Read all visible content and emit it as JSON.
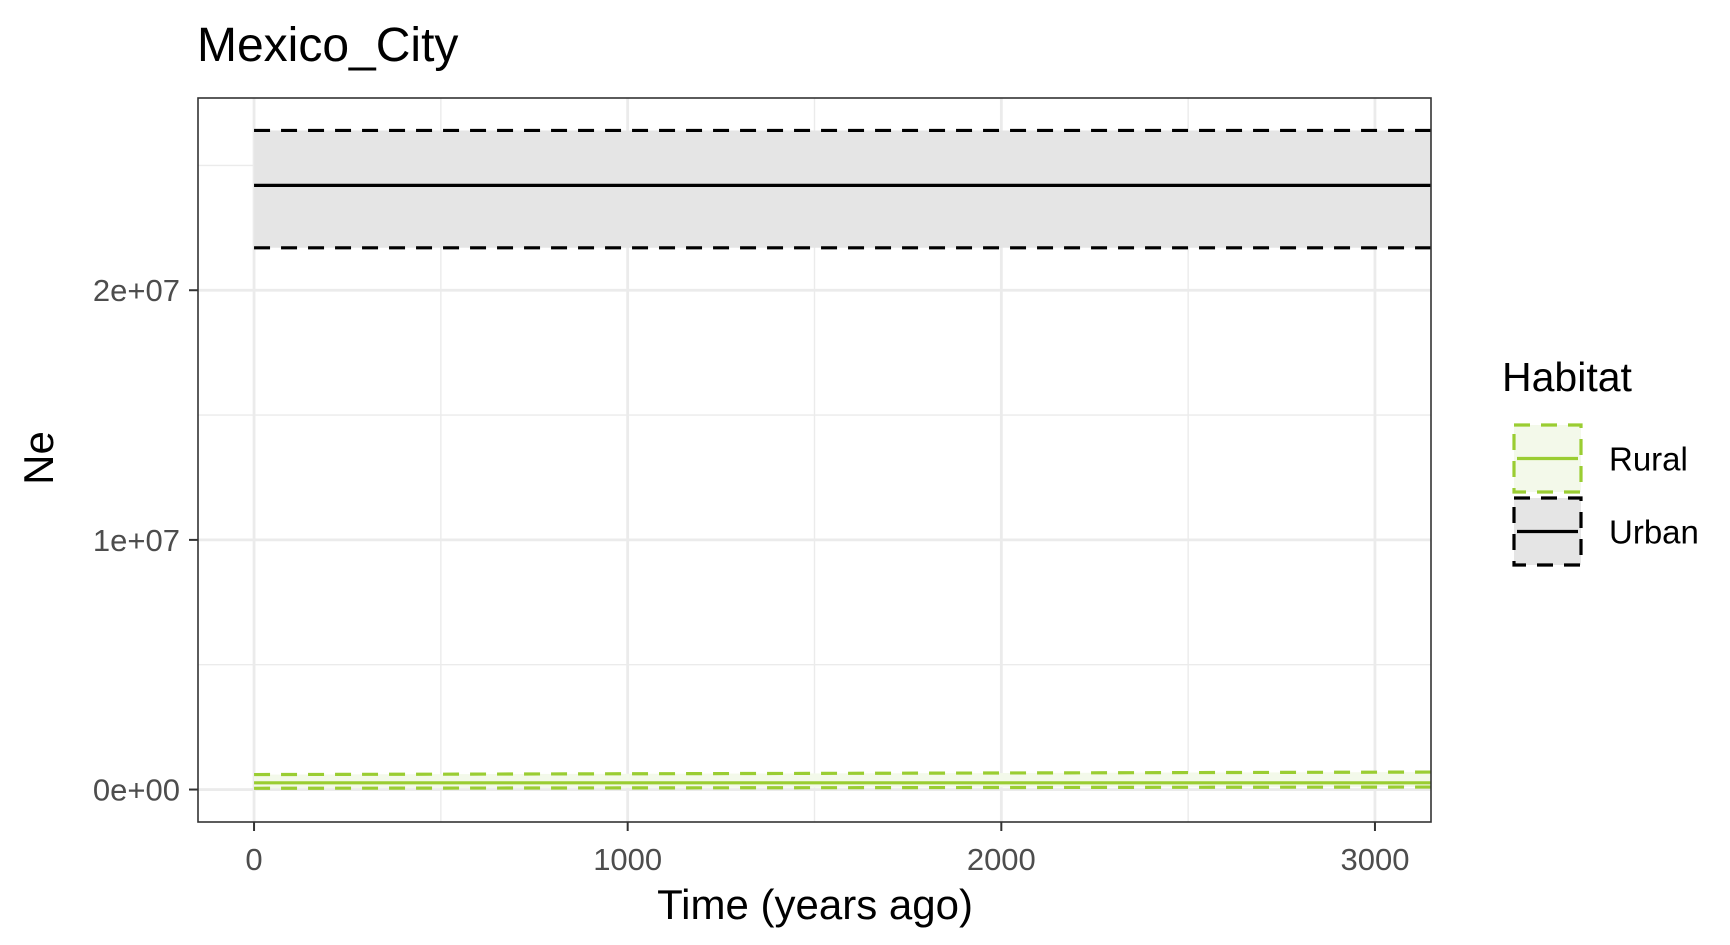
{
  "chart_data": {
    "type": "line",
    "title": "Mexico_City",
    "xlabel": "Time (years ago)",
    "ylabel": "Ne",
    "xlim": [
      -150,
      3150
    ],
    "ylim": [
      -1300000,
      27700000
    ],
    "x_ticks": [
      0,
      1000,
      2000,
      3000
    ],
    "x_tick_labels": [
      "0",
      "1000",
      "2000",
      "3000"
    ],
    "y_ticks": [
      0,
      10000000,
      20000000
    ],
    "y_tick_labels": [
      "0e+00",
      "1e+07",
      "2e+07"
    ],
    "grid": true,
    "legend": {
      "title": "Habitat",
      "position": "right",
      "entries": [
        "Rural",
        "Urban"
      ]
    },
    "series": [
      {
        "name": "Rural",
        "color": "#9acd32",
        "fill": "#f3f9ea",
        "x": [
          0,
          3150
        ],
        "median": [
          270000,
          270000
        ],
        "lower": [
          50000,
          100000
        ],
        "upper": [
          600000,
          700000
        ]
      },
      {
        "name": "Urban",
        "color": "#000000",
        "fill": "#e5e5e5",
        "x": [
          0,
          3150
        ],
        "median": [
          24200000,
          24200000
        ],
        "lower": [
          21700000,
          21700000
        ],
        "upper": [
          26400000,
          26400000
        ]
      }
    ]
  }
}
